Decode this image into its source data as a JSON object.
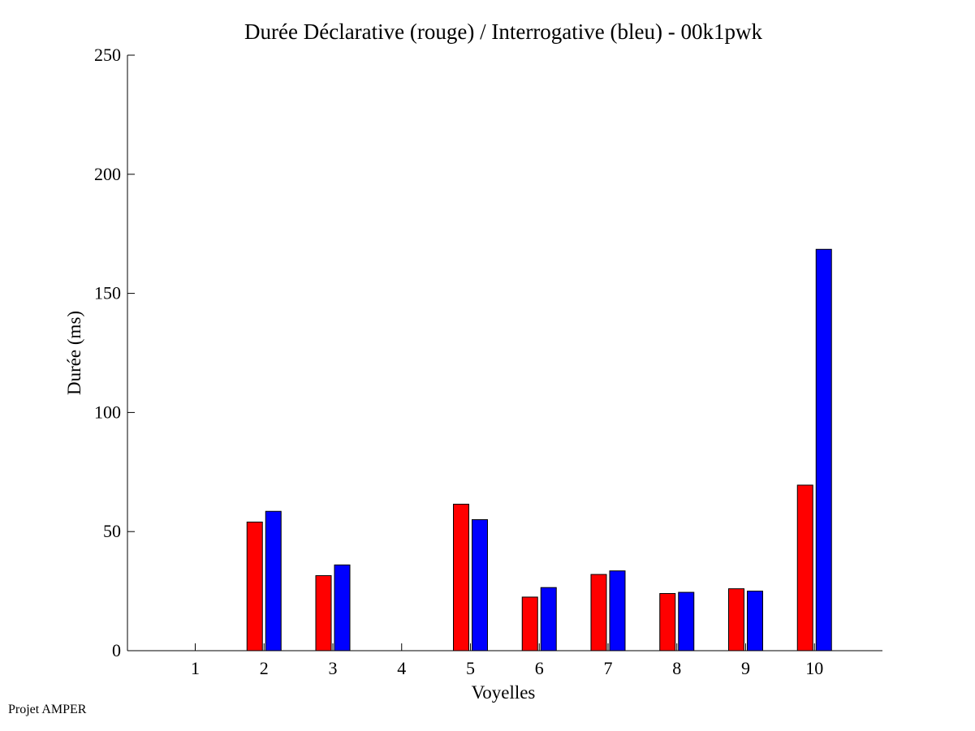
{
  "chart_data": {
    "type": "bar",
    "title": "Durée Déclarative (rouge) / Interrogative (bleu) - 00k1pwk",
    "xlabel": "Voyelles",
    "ylabel": "Durée (ms)",
    "categories": [
      "1",
      "2",
      "3",
      "4",
      "5",
      "6",
      "7",
      "8",
      "9",
      "10"
    ],
    "series": [
      {
        "color": "#ff0000",
        "values": [
          0,
          54,
          31.5,
          0,
          61.5,
          22.5,
          32,
          24,
          26,
          69.5
        ]
      },
      {
        "color": "#0000ff",
        "values": [
          0,
          58.5,
          36,
          0,
          55,
          26.5,
          33.5,
          24.5,
          25,
          168.5
        ]
      }
    ],
    "ylim": [
      0,
      250
    ],
    "yticks": [
      "0",
      "50",
      "100",
      "150",
      "200",
      "250"
    ],
    "grid": false,
    "legend": "none"
  },
  "footer": {
    "note": "Projet AMPER"
  }
}
